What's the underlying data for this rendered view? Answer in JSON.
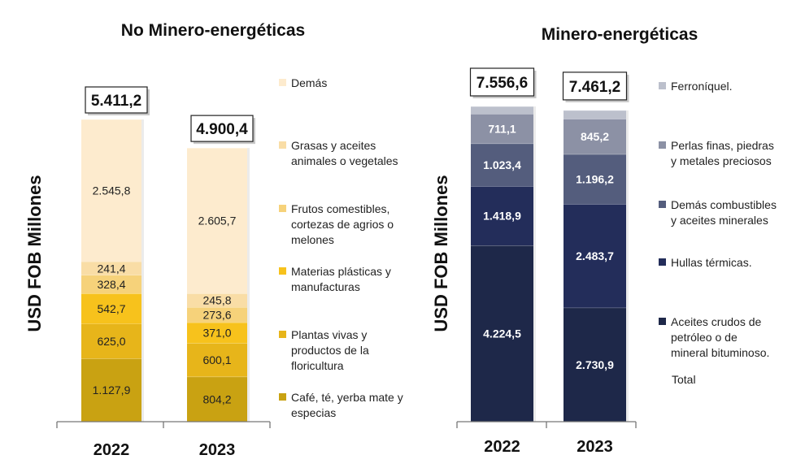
{
  "chart_data": [
    {
      "type": "bar",
      "stacked": true,
      "title": "No Minero-energéticas",
      "ylabel": "USD FOB Millones",
      "categories": [
        "2022",
        "2023"
      ],
      "totals": [
        "5.411,2",
        "4.900,4"
      ],
      "total_values": [
        5411.2,
        4900.4
      ],
      "ylim": [
        0,
        5500
      ],
      "series": [
        {
          "name": "Café, té, yerba mate y especias",
          "color": "#C9A212",
          "values": [
            1127.9,
            804.2
          ],
          "labels": [
            "1.127,9",
            "804,2"
          ]
        },
        {
          "name": "Plantas vivas y productos de la floricultura",
          "color": "#E7B51A",
          "values": [
            625.0,
            600.1
          ],
          "labels": [
            "625,0",
            "600,1"
          ]
        },
        {
          "name": "Materias plásticas y manufacturas",
          "color": "#F7C21C",
          "values": [
            542.7,
            371.0
          ],
          "labels": [
            "542,7",
            "371,0"
          ]
        },
        {
          "name": "Frutos comestibles, cortezas de agrios o melones",
          "color": "#F6D27A",
          "values": [
            328.4,
            273.6
          ],
          "labels": [
            "328,4",
            "273,6"
          ]
        },
        {
          "name": "Grasas y aceites animales o vegetales",
          "color": "#F9DDA6",
          "values": [
            241.4,
            245.8
          ],
          "labels": [
            "241,4",
            "245,8"
          ]
        },
        {
          "name": "Demás",
          "color": "#FDEBCE",
          "values": [
            2545.8,
            2605.7
          ],
          "labels": [
            "2.545,8",
            "2.605,7"
          ]
        }
      ]
    },
    {
      "type": "bar",
      "stacked": true,
      "title": "Minero-energéticas",
      "ylabel": "USD FOB Millones",
      "categories": [
        "2022",
        "2023"
      ],
      "totals": [
        "7.556,6",
        "7.461,2"
      ],
      "total_values": [
        7556.6,
        7461.2
      ],
      "ylim": [
        0,
        7700
      ],
      "series": [
        {
          "name": "Aceites crudos de petróleo o de mineral bituminoso.",
          "color": "#1E2849",
          "values": [
            4224.5,
            2730.9
          ],
          "labels": [
            "4.224,5",
            "2.730,9"
          ]
        },
        {
          "name": "Hullas térmicas.",
          "color": "#232D5A",
          "values": [
            1418.9,
            2483.7
          ],
          "labels": [
            "1.418,9",
            "2.483,7"
          ]
        },
        {
          "name": "Demás combustibles y aceites minerales",
          "color": "#545D7D",
          "values": [
            1023.4,
            1196.2
          ],
          "labels": [
            "1.023,4",
            "1.196,2"
          ]
        },
        {
          "name": "Perlas finas, piedras y metales preciosos",
          "color": "#8C91A5",
          "values": [
            711.1,
            845.2
          ],
          "labels": [
            "711,1",
            "845,2"
          ]
        },
        {
          "name": "Ferroníquel.",
          "color": "#BCC0CC",
          "values": [
            178.7,
            205.2
          ],
          "labels": [
            "",
            ""
          ]
        }
      ],
      "legend_extra": "Total"
    }
  ]
}
